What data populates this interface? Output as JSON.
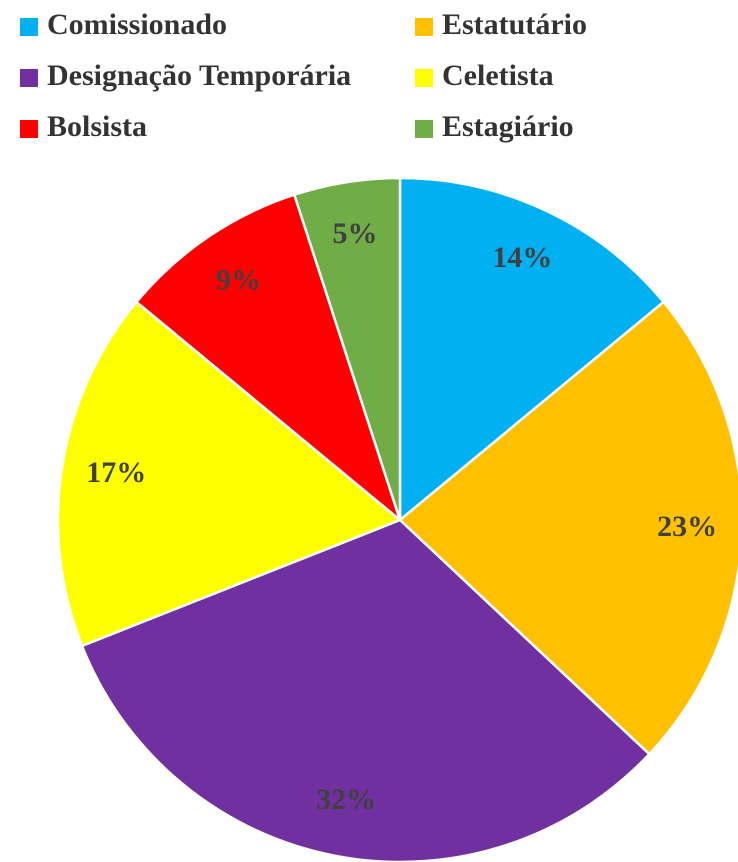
{
  "chart_data": {
    "type": "pie",
    "categories": [
      "Comissionado",
      "Estatutário",
      "Designação Temporária",
      "Celetista",
      "Bolsista",
      "Estagiário"
    ],
    "values": [
      14,
      23,
      32,
      17,
      9,
      5
    ],
    "value_labels": [
      "14%",
      "23%",
      "32%",
      "17%",
      "9%",
      "5%"
    ],
    "colors": [
      "#00b0f0",
      "#ffc000",
      "#7030a0",
      "#ffff00",
      "#ff0000",
      "#70ad47"
    ],
    "legend": "top"
  }
}
